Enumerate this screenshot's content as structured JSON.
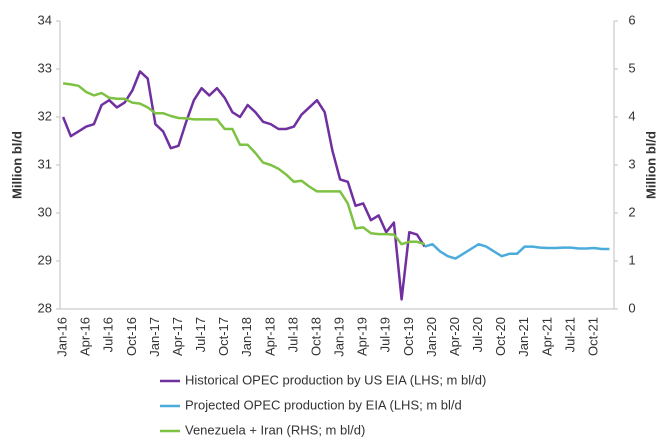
{
  "chart_data": {
    "type": "line",
    "ylabel": "Million bl/d",
    "y2label": "Million bl/d",
    "categories": [
      "Jan-16",
      null,
      null,
      "Apr-16",
      null,
      null,
      "Jul-16",
      null,
      null,
      "Oct-16",
      null,
      null,
      "Jan-17",
      null,
      null,
      "Apr-17",
      null,
      null,
      "Jul-17",
      null,
      null,
      "Oct-17",
      null,
      null,
      "Jan-18",
      null,
      null,
      "Apr-18",
      null,
      null,
      "Jul-18",
      null,
      null,
      "Oct-18",
      null,
      null,
      "Jan-19",
      null,
      null,
      "Apr-19",
      null,
      null,
      "Jul-19",
      null,
      null,
      "Oct-19",
      null,
      null,
      "Jan-20",
      null,
      null,
      "Apr-20",
      null,
      null,
      "Jul-20",
      null,
      null,
      "Oct-20",
      null,
      null,
      "Jan-21",
      null,
      null,
      "Apr-21",
      null,
      null,
      "Jul-21",
      null,
      null,
      "Oct-21",
      null,
      null
    ],
    "ylim": [
      28,
      34
    ],
    "yticks": [
      28,
      29,
      30,
      31,
      32,
      33,
      34
    ],
    "y2lim": [
      0,
      6
    ],
    "y2ticks": [
      0,
      1,
      2,
      3,
      4,
      5,
      6
    ],
    "series": [
      {
        "name": "Historical OPEC production by US EIA (LHS; m bl/d)",
        "color": "#7030a0",
        "values": [
          32.0,
          31.6,
          31.7,
          31.8,
          31.85,
          32.25,
          32.35,
          32.2,
          32.3,
          32.55,
          32.95,
          32.8,
          31.85,
          31.7,
          31.35,
          31.4,
          31.9,
          32.35,
          32.6,
          32.45,
          32.6,
          32.4,
          32.1,
          32.0,
          32.25,
          32.1,
          31.9,
          31.85,
          31.75,
          31.75,
          31.8,
          32.05,
          32.2,
          32.35,
          32.1,
          31.3,
          30.7,
          30.65,
          30.15,
          30.2,
          29.85,
          29.95,
          29.6,
          29.8,
          28.2,
          29.6,
          29.55,
          29.3,
          null,
          null,
          null,
          null,
          null,
          null,
          null,
          null,
          null,
          null,
          null,
          null,
          null,
          null,
          null,
          null,
          null,
          null,
          null,
          null,
          null,
          null,
          null,
          null
        ]
      },
      {
        "name": "Projected OPEC production by EIA (LHS; m bl/d",
        "color": "#4bacdc",
        "values": [
          null,
          null,
          null,
          null,
          null,
          null,
          null,
          null,
          null,
          null,
          null,
          null,
          null,
          null,
          null,
          null,
          null,
          null,
          null,
          null,
          null,
          null,
          null,
          null,
          null,
          null,
          null,
          null,
          null,
          null,
          null,
          null,
          null,
          null,
          null,
          null,
          null,
          null,
          null,
          null,
          null,
          null,
          null,
          null,
          null,
          null,
          null,
          29.3,
          29.35,
          29.2,
          29.1,
          29.05,
          29.15,
          29.25,
          29.35,
          29.3,
          29.2,
          29.1,
          29.15,
          29.15,
          29.3,
          29.3,
          29.28,
          29.27,
          29.27,
          29.28,
          29.28,
          29.26,
          29.26,
          29.27,
          29.25,
          29.25
        ]
      },
      {
        "name": "Venezuela + Iran (RHS; m bl/d)",
        "color": "#7dc242",
        "axis": "y2",
        "values": [
          4.7,
          4.68,
          4.65,
          4.52,
          4.45,
          4.5,
          4.4,
          4.38,
          4.38,
          4.3,
          4.28,
          4.2,
          4.08,
          4.08,
          4.02,
          3.98,
          3.97,
          3.95,
          3.95,
          3.95,
          3.95,
          3.75,
          3.75,
          3.42,
          3.42,
          3.25,
          3.05,
          3.0,
          2.92,
          2.8,
          2.65,
          2.67,
          2.55,
          2.45,
          2.45,
          2.45,
          2.45,
          2.2,
          1.68,
          1.7,
          1.58,
          1.56,
          1.56,
          1.55,
          1.35,
          1.4,
          1.4,
          1.35,
          null,
          null,
          null,
          null,
          null,
          null,
          null,
          null,
          null,
          null,
          null,
          null,
          null,
          null,
          null,
          null,
          null,
          null,
          null,
          null,
          null,
          null,
          null,
          null
        ]
      }
    ]
  }
}
